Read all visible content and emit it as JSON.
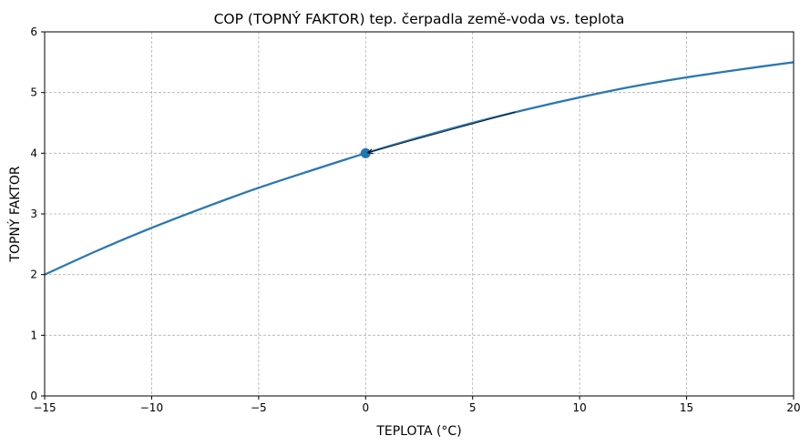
{
  "chart_data": {
    "type": "line",
    "title": "COP (TOPNÝ FAKTOR) tep. čerpadla země-voda vs. teplota",
    "xlabel": "TEPLOTA (°C)",
    "ylabel": "TOPNÝ FAKTOR",
    "xlim": [
      -15,
      20
    ],
    "ylim": [
      0,
      6
    ],
    "x_ticks": [
      -15,
      -10,
      -5,
      0,
      5,
      10,
      15,
      20
    ],
    "x_tick_labels": [
      "−15",
      "−10",
      "−5",
      "0",
      "5",
      "10",
      "15",
      "20"
    ],
    "y_ticks": [
      0,
      1,
      2,
      3,
      4,
      5,
      6
    ],
    "y_tick_labels": [
      "0",
      "1",
      "2",
      "3",
      "4",
      "5",
      "6"
    ],
    "grid": true,
    "series": [
      {
        "color": "#2a77b4",
        "x": [
          -15,
          -12.5,
          -10,
          -7.5,
          -5,
          -2.5,
          0,
          2.5,
          5,
          7.5,
          10,
          12.5,
          15,
          17.5,
          20
        ],
        "y": [
          2.0,
          2.4,
          2.77,
          3.11,
          3.43,
          3.72,
          4.0,
          4.26,
          4.5,
          4.72,
          4.92,
          5.1,
          5.25,
          5.38,
          5.5
        ]
      }
    ],
    "highlight_point": {
      "x": 0,
      "y": 4.0,
      "color": "#1f77b4"
    },
    "annotation_arrow": {
      "from": [
        7.0,
        4.68
      ],
      "to": [
        0.1,
        4.01
      ],
      "color": "#000000"
    }
  }
}
